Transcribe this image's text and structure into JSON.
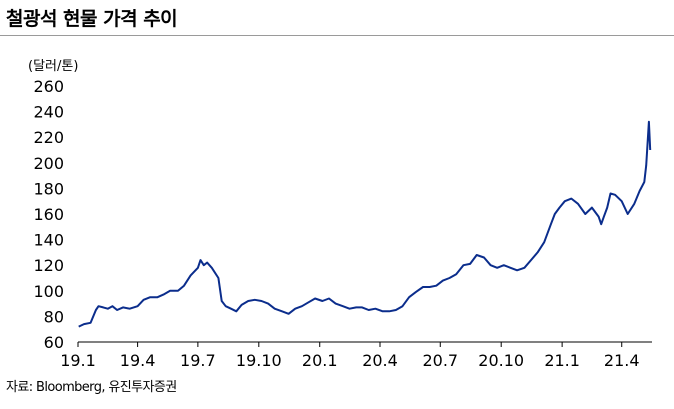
{
  "header": {
    "title": "철광석 현물 가격 추이"
  },
  "footer": {
    "source": "자료: Bloomberg, 유진투자증권"
  },
  "chart_data": {
    "type": "line",
    "title": "철광석 현물 가격 추이",
    "ylabel": "(달러/톤)",
    "xlabel": "",
    "ylim": [
      60,
      260
    ],
    "yticks": [
      60,
      80,
      100,
      120,
      140,
      160,
      180,
      200,
      220,
      240,
      260
    ],
    "x_tick_labels": [
      "19.1",
      "19.4",
      "19.7",
      "19.10",
      "20.1",
      "20.4",
      "20.7",
      "20.10",
      "21.1",
      "21.4"
    ],
    "grid": false,
    "legend": "none",
    "line_color": "#0b2d8c",
    "series": [
      {
        "x": [
          "2019-01-02",
          "2019-01-10",
          "2019-01-20",
          "2019-01-28",
          "2019-02-01",
          "2019-02-08",
          "2019-02-15",
          "2019-02-22",
          "2019-03-01",
          "2019-03-10",
          "2019-03-20",
          "2019-04-01",
          "2019-04-10",
          "2019-04-20",
          "2019-05-01",
          "2019-05-10",
          "2019-05-20",
          "2019-06-01",
          "2019-06-10",
          "2019-06-20",
          "2019-07-01",
          "2019-07-05",
          "2019-07-10",
          "2019-07-15",
          "2019-07-22",
          "2019-08-01",
          "2019-08-06",
          "2019-08-12",
          "2019-08-20",
          "2019-08-28",
          "2019-09-05",
          "2019-09-15",
          "2019-09-25",
          "2019-10-05",
          "2019-10-15",
          "2019-10-25",
          "2019-11-05",
          "2019-11-15",
          "2019-11-25",
          "2019-12-05",
          "2019-12-15",
          "2019-12-25",
          "2020-01-05",
          "2020-01-15",
          "2020-01-25",
          "2020-02-05",
          "2020-02-15",
          "2020-02-25",
          "2020-03-05",
          "2020-03-15",
          "2020-03-25",
          "2020-04-05",
          "2020-04-15",
          "2020-04-25",
          "2020-05-05",
          "2020-05-15",
          "2020-05-25",
          "2020-06-05",
          "2020-06-15",
          "2020-06-25",
          "2020-07-05",
          "2020-07-15",
          "2020-07-25",
          "2020-08-05",
          "2020-08-15",
          "2020-08-25",
          "2020-09-05",
          "2020-09-15",
          "2020-09-25",
          "2020-10-05",
          "2020-10-15",
          "2020-10-25",
          "2020-11-05",
          "2020-11-15",
          "2020-11-25",
          "2020-12-05",
          "2020-12-15",
          "2020-12-21",
          "2020-12-28",
          "2021-01-05",
          "2021-01-15",
          "2021-01-25",
          "2021-02-05",
          "2021-02-15",
          "2021-02-25",
          "2021-03-01",
          "2021-03-05",
          "2021-03-10",
          "2021-03-15",
          "2021-03-22",
          "2021-04-01",
          "2021-04-10",
          "2021-04-20",
          "2021-04-28",
          "2021-05-05",
          "2021-05-08",
          "2021-05-12",
          "2021-05-14"
        ],
        "values": [
          72,
          74,
          75,
          85,
          88,
          87,
          86,
          88,
          85,
          87,
          86,
          88,
          93,
          95,
          95,
          97,
          100,
          100,
          104,
          112,
          118,
          124,
          120,
          122,
          118,
          110,
          92,
          88,
          86,
          84,
          89,
          92,
          93,
          92,
          90,
          86,
          84,
          82,
          86,
          88,
          91,
          94,
          92,
          94,
          90,
          88,
          86,
          87,
          87,
          85,
          86,
          84,
          84,
          85,
          88,
          95,
          99,
          103,
          103,
          104,
          108,
          110,
          113,
          120,
          121,
          128,
          126,
          120,
          118,
          120,
          118,
          116,
          118,
          124,
          130,
          138,
          152,
          160,
          165,
          170,
          172,
          168,
          160,
          165,
          158,
          152,
          158,
          165,
          176,
          175,
          170,
          160,
          168,
          178,
          185,
          198,
          232,
          210
        ]
      }
    ]
  }
}
